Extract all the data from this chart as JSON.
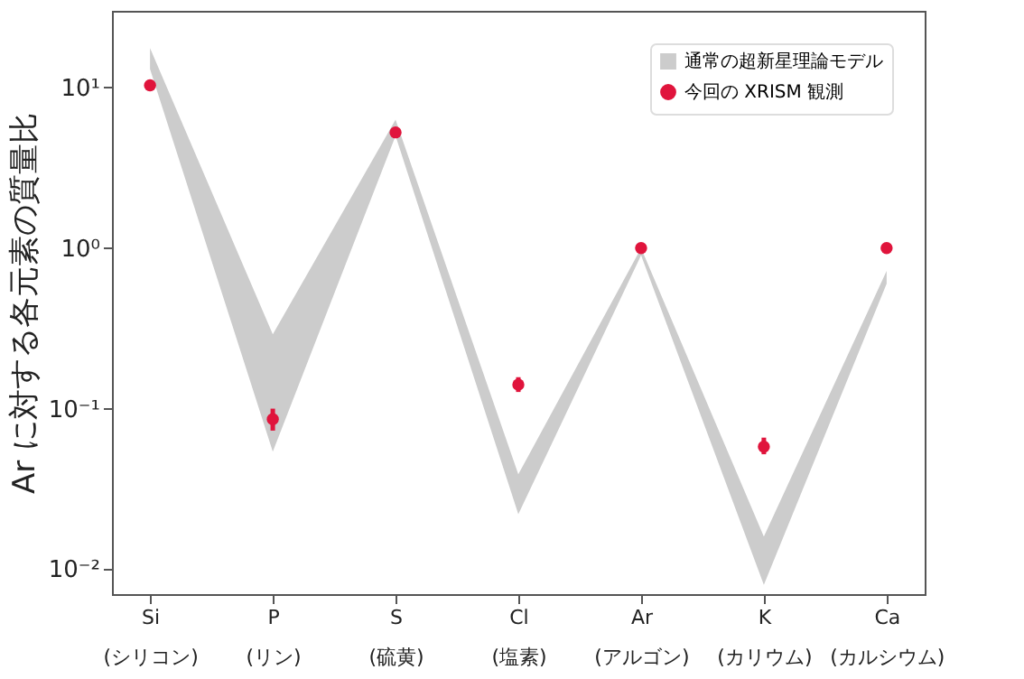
{
  "chart_data": {
    "type": "scatter",
    "ylabel": "Ar に対する各元素の質量比",
    "categories": [
      "Si\n(シリコン)",
      "P\n(リン)",
      "S\n(硫黄)",
      "Cl\n(塩素)",
      "Ar\n(アルゴン)",
      "K\n(カリウム)",
      "Ca\n(カルシウム)"
    ],
    "series": [
      {
        "name": "通常の超新星理論モデル",
        "type": "area",
        "color": "#cccccc",
        "values": [
          null,
          null,
          null,
          null,
          null,
          null,
          null
        ],
        "lower": [
          13,
          0.054,
          5.0,
          0.022,
          0.9,
          0.008,
          0.6
        ],
        "upper": [
          17.6,
          0.29,
          6.3,
          0.039,
          1.0,
          0.016,
          0.72
        ]
      },
      {
        "name": "今回の XRISM 観測",
        "type": "scatter",
        "color": "#e0143c",
        "values": [
          10.3,
          0.086,
          5.25,
          0.141,
          1.0,
          0.058,
          1.0
        ],
        "errors": [
          null,
          [
            0.073,
            0.1
          ],
          null,
          [
            0.127,
            0.157
          ],
          null,
          [
            0.052,
            0.066
          ],
          null
        ]
      }
    ],
    "log": "y",
    "ylim": [
      0.007,
      30
    ],
    "yticks": [
      {
        "value": 0.01,
        "label": "10⁻²"
      },
      {
        "value": 0.1,
        "label": "10⁻¹"
      },
      {
        "value": 1,
        "label": "10⁰"
      },
      {
        "value": 10,
        "label": "10¹"
      }
    ],
    "legend": "top right",
    "marker": "circle",
    "grid": false
  }
}
